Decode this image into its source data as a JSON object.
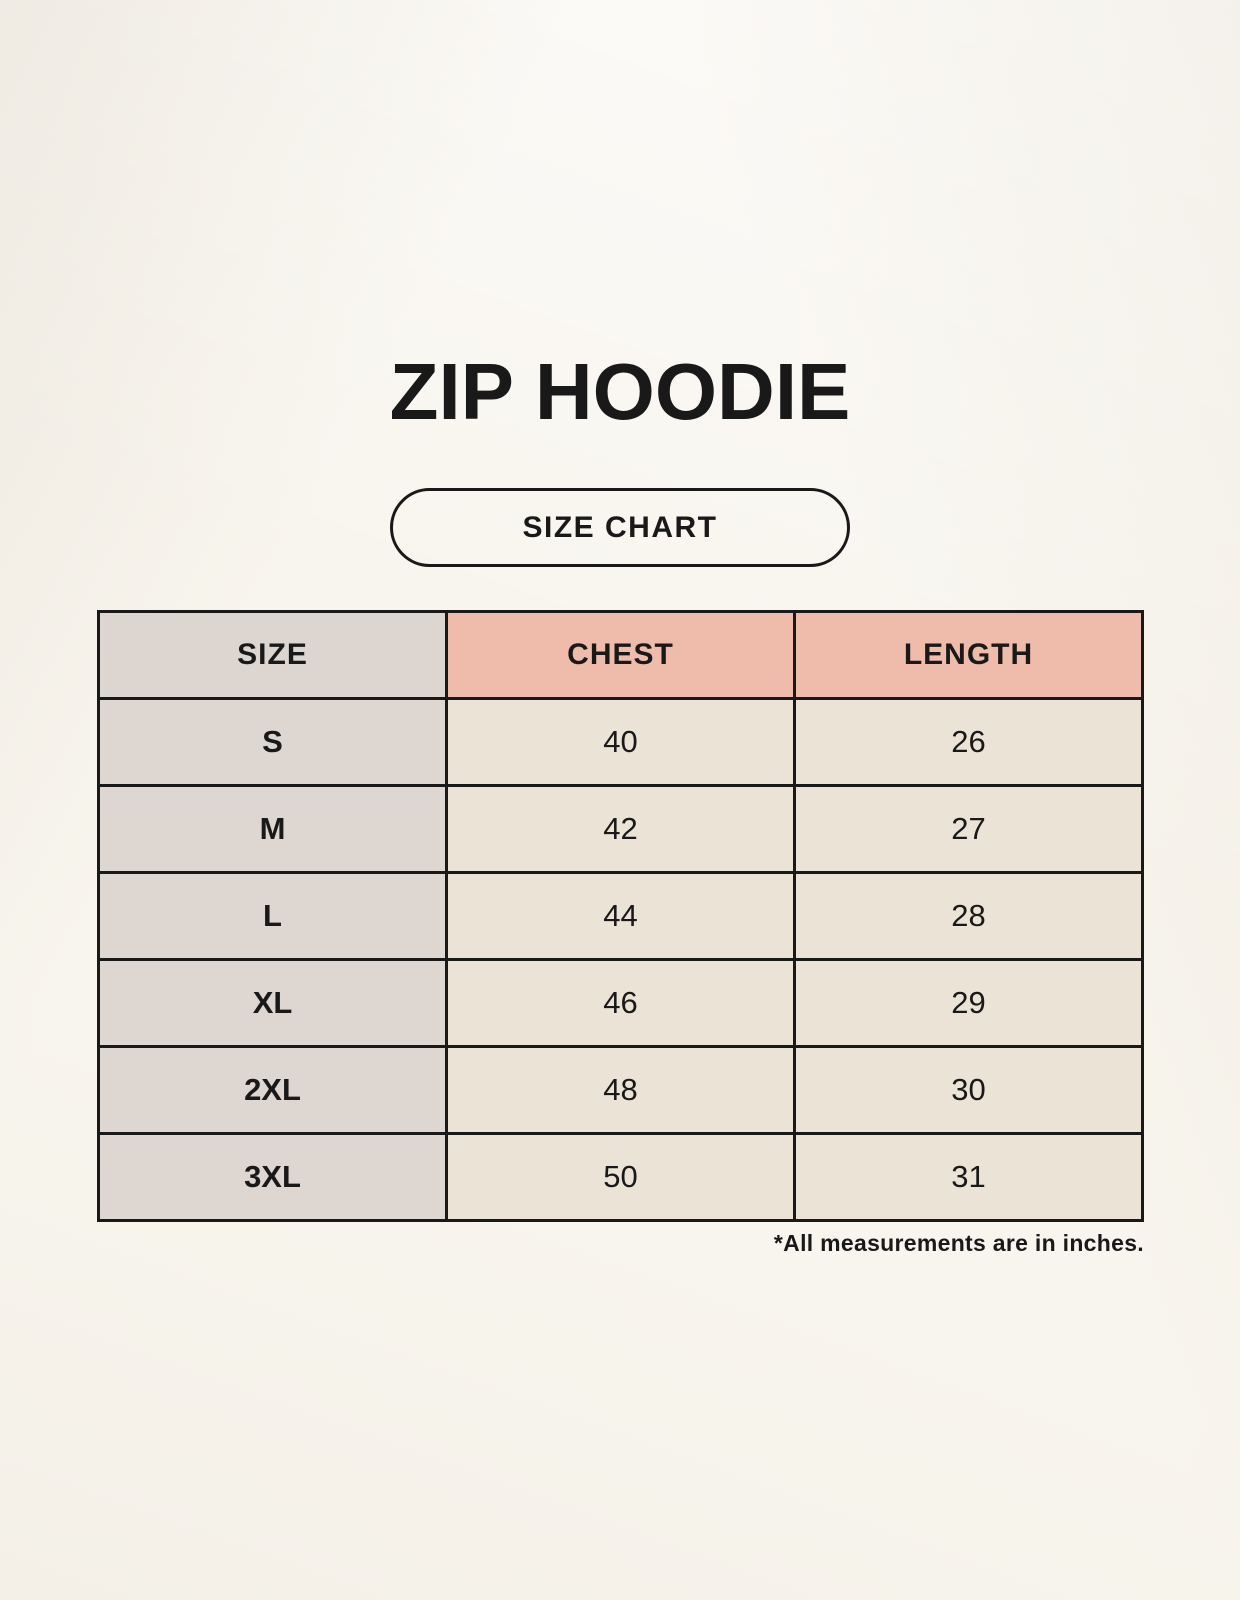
{
  "page": {
    "title": "ZIP HOODIE",
    "badge_label": "SIZE CHART",
    "footnote": "*All measurements are in inches."
  },
  "colors": {
    "background": "#f8f5ee",
    "border": "#191919",
    "text": "#191919",
    "header_label_bg": "#dcd5d0",
    "header_measure_bg": "#efbcab",
    "row_label_bg": "#ddd6d1",
    "row_value_bg": "#eae3d6"
  },
  "chart_data": {
    "type": "table",
    "title": "ZIP HOODIE",
    "subtitle": "SIZE CHART",
    "columns": [
      "SIZE",
      "CHEST",
      "LENGTH"
    ],
    "rows": [
      [
        "S",
        40,
        26
      ],
      [
        "M",
        42,
        27
      ],
      [
        "L",
        44,
        28
      ],
      [
        "XL",
        46,
        29
      ],
      [
        "2XL",
        48,
        30
      ],
      [
        "3XL",
        50,
        31
      ]
    ],
    "units": "inches",
    "note": "*All measurements are in inches."
  }
}
